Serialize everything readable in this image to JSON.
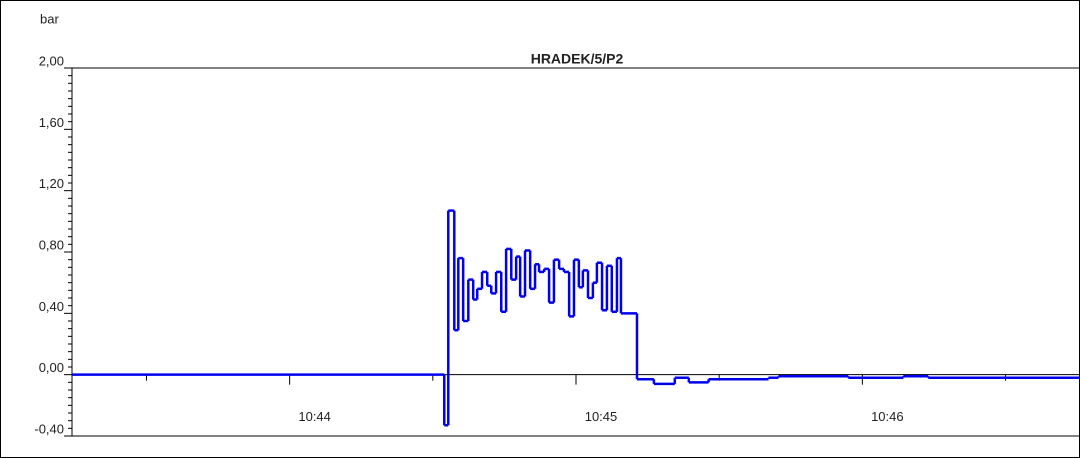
{
  "chart_data": {
    "type": "step",
    "title": "HRADEK/5/P2",
    "ylabel": "bar",
    "x": [
      643.24,
      644.54,
      644.554,
      644.575,
      644.589,
      644.606,
      644.624,
      644.641,
      644.655,
      644.672,
      644.69,
      644.704,
      644.721,
      644.739,
      644.756,
      644.774,
      644.791,
      644.805,
      644.822,
      644.84,
      644.857,
      644.871,
      644.889,
      644.906,
      644.923,
      644.941,
      644.958,
      644.976,
      644.993,
      645.01,
      645.024,
      645.042,
      645.059,
      645.073,
      645.091,
      645.108,
      645.125,
      645.143,
      645.157,
      645.213,
      645.272,
      645.345,
      645.394,
      645.463,
      645.672,
      645.707,
      645.951,
      646.143,
      646.23,
      646.76
    ],
    "series": [
      {
        "color": "#0000ee",
        "values": [
          0.0,
          -0.33,
          1.07,
          0.29,
          0.76,
          0.35,
          0.62,
          0.49,
          0.56,
          0.67,
          0.58,
          0.53,
          0.67,
          0.41,
          0.82,
          0.62,
          0.77,
          0.51,
          0.81,
          0.56,
          0.72,
          0.67,
          0.69,
          0.47,
          0.75,
          0.69,
          0.67,
          0.38,
          0.75,
          0.57,
          0.68,
          0.5,
          0.6,
          0.73,
          0.42,
          0.71,
          0.41,
          0.76,
          0.4,
          -0.03,
          -0.06,
          -0.02,
          -0.05,
          -0.03,
          -0.02,
          -0.01,
          -0.02,
          -0.01,
          -0.02,
          -0.01
        ]
      }
    ],
    "xlim": [
      643.24,
      646.76
    ],
    "xticks": [
      {
        "value": 644,
        "label": "10:44"
      },
      {
        "value": 645,
        "label": "10:45"
      },
      {
        "value": 646,
        "label": "10:46"
      }
    ],
    "xminorticks": [
      643.5,
      644.5,
      645.5,
      646.5
    ],
    "ylim": [
      -0.4,
      2.0
    ],
    "yticks": [
      {
        "value": -0.4,
        "label": "-0,40"
      },
      {
        "value": 0,
        "label": "0,00"
      },
      {
        "value": 0.4,
        "label": "0,40"
      },
      {
        "value": 0.8,
        "label": "0,80"
      },
      {
        "value": 1.2,
        "label": "1,20"
      },
      {
        "value": 1.6,
        "label": "1,60"
      },
      {
        "value": 2.0,
        "label": "2,00"
      }
    ]
  }
}
